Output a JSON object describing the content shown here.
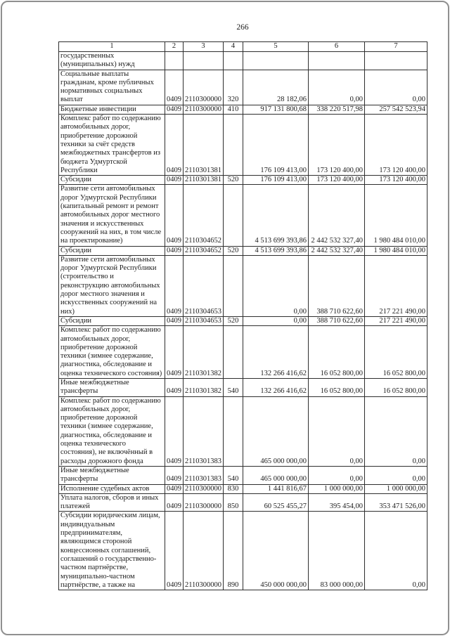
{
  "page": {
    "number": "266"
  },
  "table": {
    "headers": [
      "1",
      "2",
      "3",
      "4",
      "5",
      "6",
      "7"
    ],
    "rows": [
      [
        "государственных\n(муниципальных) нужд",
        "",
        "",
        "",
        "",
        "",
        ""
      ],
      [
        "Социальные выплаты\nгражданам, кроме публичных\nнормативных социальных\nвыплат",
        "0409",
        "2110300000",
        "320",
        "28 182,06",
        "0,00",
        "0,00"
      ],
      [
        "Бюджетные инвестиции",
        "0409",
        "2110300000",
        "410",
        "917 131 800,68",
        "338 220 517,98",
        "257 542 523,94"
      ],
      [
        "Комплекс работ по содержанию\nавтомобильных дорог,\nприобретение дорожной\nтехники за счёт средств\nмежбюджетных трансфертов из\nбюджета Удмуртской\nРеспублики",
        "0409",
        "2110301381",
        "",
        "176 109 413,00",
        "173 120 400,00",
        "173 120 400,00"
      ],
      [
        "Субсидии",
        "0409",
        "2110301381",
        "520",
        "176 109 413,00",
        "173 120 400,00",
        "173 120 400,00"
      ],
      [
        "Развитие сети автомобильных\nдорог Удмуртской Республики\n(капитальный ремонт и ремонт\nавтомобильных дорог местного\nзначения и искусственных\nсооружений на них, в том числе\nна проектирование)",
        "0409",
        "2110304652",
        "",
        "4 513 699 393,86",
        "2 442 532 327,40",
        "1 980 484 010,00"
      ],
      [
        "Субсидии",
        "0409",
        "2110304652",
        "520",
        "4 513 699 393,86",
        "2 442 532 327,40",
        "1 980 484 010,00"
      ],
      [
        "Развитие сети автомобильных\nдорог Удмуртской Республики\n(строительство и\nреконструкцию автомобильных\nдорог местного значения и\nискусственных сооружений на\nних)",
        "0409",
        "2110304653",
        "",
        "0,00",
        "388 710 622,60",
        "217 221 490,00"
      ],
      [
        "Субсидии",
        "0409",
        "2110304653",
        "520",
        "0,00",
        "388 710 622,60",
        "217 221 490,00"
      ],
      [
        "Комплекс работ по содержанию\nавтомобильных дорог,\nприобретение дорожной\nтехники (зимнее содержание,\nдиагностика, обследование и\nоценка технического состояния)",
        "0409",
        "2110301382",
        "",
        "132 266 416,62",
        "16 052 800,00",
        "16 052 800,00"
      ],
      [
        "Иные межбюджетные\nтрансферты",
        "0409",
        "2110301382",
        "540",
        "132 266 416,62",
        "16 052 800,00",
        "16 052 800,00"
      ],
      [
        "Комплекс работ по содержанию\nавтомобильных дорог,\nприобретение дорожной\nтехники (зимнее содержание,\nдиагностика, обследование и\nоценка технического\nсостояния), не включённый в\nрасходы дорожного фонда",
        "0409",
        "2110301383",
        "",
        "465 000 000,00",
        "0,00",
        "0,00"
      ],
      [
        "Иные межбюджетные\nтрансферты",
        "0409",
        "2110301383",
        "540",
        "465 000 000,00",
        "0,00",
        "0,00"
      ],
      [
        "Исполнение судебных актов",
        "0409",
        "2110300000",
        "830",
        "1 441 816,67",
        "1 000 000,00",
        "1 000 000,00"
      ],
      [
        "Уплата налогов, сборов и иных\nплатежей",
        "0409",
        "2110300000",
        "850",
        "60 525 455,27",
        "395 454,00",
        "353 471 526,00"
      ],
      [
        "Субсидии юридическим лицам,\nиндивидуальным\nпредпринимателям,\nявляющимся стороной\nконцессионных соглашений,\nсоглашений о государственно-\nчастном партнёрстве,\nмуниципально-частном\nпартнёрстве, а также на",
        "0409",
        "2110300000",
        "890",
        "450 000 000,00",
        "83 000 000,00",
        "0,00"
      ]
    ]
  }
}
